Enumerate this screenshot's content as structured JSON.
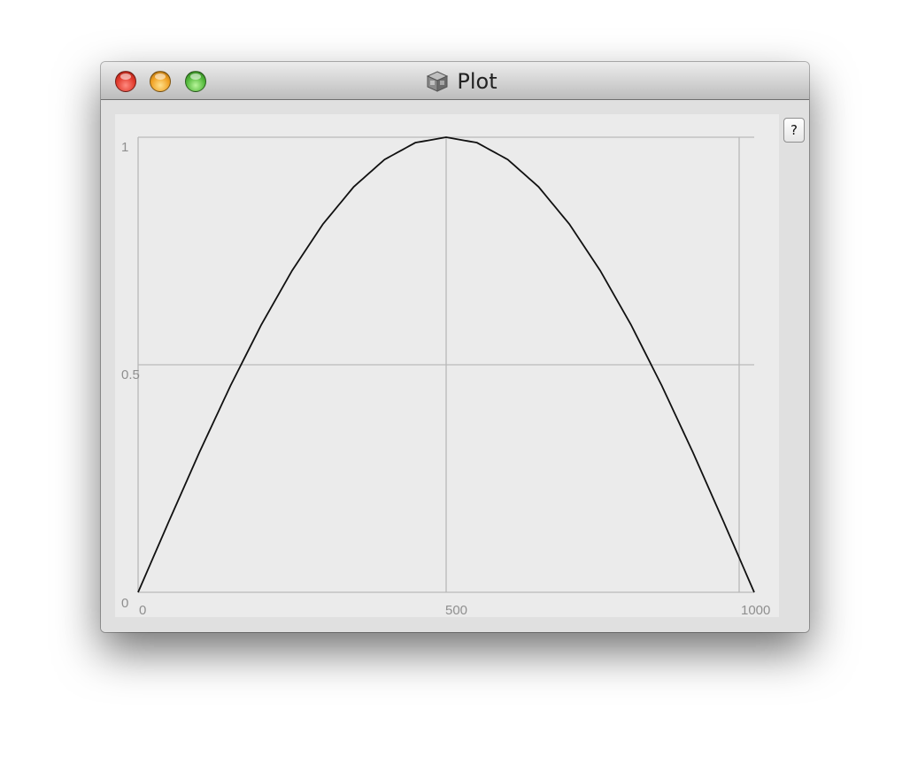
{
  "window": {
    "title": "Plot",
    "app_icon": "cube-icon"
  },
  "help_button": {
    "label": "?"
  },
  "chart_data": {
    "type": "line",
    "title": "",
    "xlabel": "",
    "ylabel": "",
    "xlim": [
      0,
      1000
    ],
    "ylim": [
      0,
      1
    ],
    "x_ticks": [
      "0",
      "500",
      "1000"
    ],
    "y_ticks": [
      "0",
      "0.5",
      "1"
    ],
    "grid": true,
    "series": [
      {
        "color": "#111111",
        "x": [
          0,
          50,
          100,
          150,
          200,
          250,
          300,
          350,
          400,
          450,
          500,
          550,
          600,
          650,
          700,
          750,
          800,
          850,
          900,
          950,
          1000
        ],
        "y": [
          0,
          0.156,
          0.309,
          0.454,
          0.588,
          0.707,
          0.809,
          0.891,
          0.951,
          0.988,
          1.0,
          0.988,
          0.951,
          0.891,
          0.809,
          0.707,
          0.588,
          0.454,
          0.309,
          0.156,
          0
        ]
      }
    ]
  }
}
